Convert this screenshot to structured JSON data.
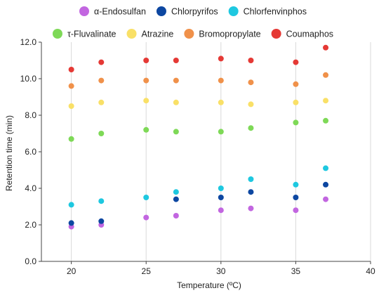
{
  "chart_data": {
    "type": "scatter",
    "xlabel": "Temperature (ºC)",
    "ylabel": "Retention time (min)",
    "xlim": [
      18,
      40
    ],
    "ylim": [
      0,
      12
    ],
    "xticks": [
      20,
      25,
      30,
      35,
      40
    ],
    "yticks": [
      0,
      2,
      4,
      6,
      8,
      10,
      12
    ],
    "xtick_labels": [
      "20",
      "25",
      "30",
      "35",
      "40"
    ],
    "ytick_labels": [
      "0.0",
      "2.0",
      "4.0",
      "6.0",
      "8.0",
      "10.0",
      "12.0"
    ],
    "grid": "vertical",
    "legend_position": "top",
    "x": [
      20,
      22,
      25,
      27,
      30,
      32,
      35,
      37
    ],
    "series": [
      {
        "name": "α-Endosulfan",
        "color": "#c266e0",
        "values": [
          1.9,
          2.0,
          2.4,
          2.5,
          2.8,
          2.9,
          2.8,
          3.4
        ]
      },
      {
        "name": "Chlorpyrifos",
        "color": "#0d47a1",
        "values": [
          2.1,
          2.2,
          null,
          3.4,
          3.5,
          3.8,
          3.5,
          4.2
        ]
      },
      {
        "name": "Chlorfenvinphos",
        "color": "#1ec8e0",
        "values": [
          3.1,
          3.3,
          3.5,
          3.8,
          4.0,
          4.5,
          4.2,
          5.1
        ]
      },
      {
        "name": "τ-Fluvalinate",
        "color": "#7ed957",
        "values": [
          6.7,
          7.0,
          7.2,
          7.1,
          7.1,
          7.3,
          7.6,
          7.7
        ]
      },
      {
        "name": "Atrazine",
        "color": "#f9e067",
        "values": [
          8.5,
          8.7,
          8.8,
          8.7,
          8.7,
          8.6,
          8.7,
          8.8
        ]
      },
      {
        "name": "Bromopropylate",
        "color": "#f0914a",
        "values": [
          9.6,
          9.9,
          9.9,
          9.9,
          9.9,
          9.8,
          9.7,
          10.2
        ]
      },
      {
        "name": "Coumaphos",
        "color": "#e53935",
        "values": [
          10.5,
          10.9,
          11.0,
          11.0,
          11.1,
          11.0,
          10.9,
          11.7
        ]
      }
    ],
    "legend_rows": [
      [
        0,
        1,
        2
      ],
      [
        3,
        4,
        5,
        6
      ]
    ]
  }
}
